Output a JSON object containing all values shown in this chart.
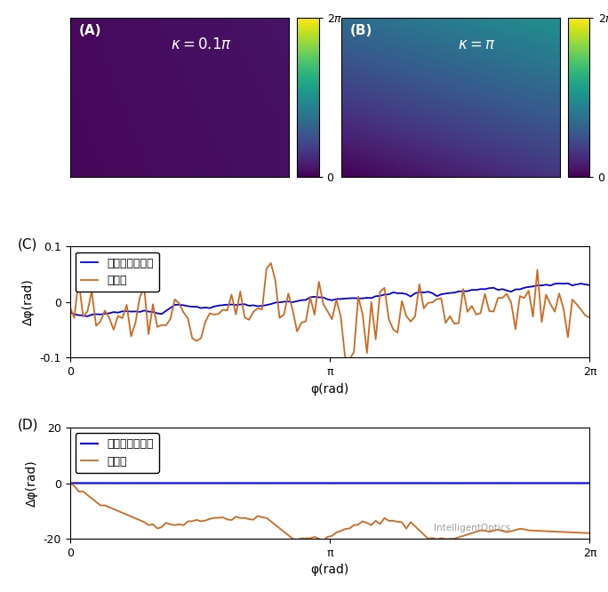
{
  "panel_A_label": "(A)",
  "panel_B_label": "(B)",
  "panel_C_label": "(C)",
  "panel_D_label": "(D)",
  "colormap": "viridis",
  "blue_color": "#0000EE",
  "orange_color": "#D2691E",
  "legend_label1": "衍射图样分析法",
  "legend_label2": "干涉法",
  "panel_C_ylim": [
    -0.1,
    0.1
  ],
  "panel_D_ylim": [
    -20,
    20
  ],
  "xlabel": "φ(rad)",
  "ylabel_C": "Δφ(rad)",
  "ylabel_D": "Δφ(rad)",
  "xtick_positions": [
    0,
    3.14159265,
    6.2831853
  ],
  "xtick_labels": [
    "0",
    "π",
    "2π"
  ],
  "panel_C_yticks": [
    -0.1,
    0,
    0.1
  ],
  "panel_D_yticks": [
    -20,
    0,
    20
  ],
  "panel_C_yticklabels": [
    "-0.1",
    "0",
    "0.1"
  ],
  "panel_D_yticklabels": [
    "-20",
    "0",
    "20"
  ],
  "background_color": "#FFFFFF",
  "watermark": "IntelligentOptics"
}
